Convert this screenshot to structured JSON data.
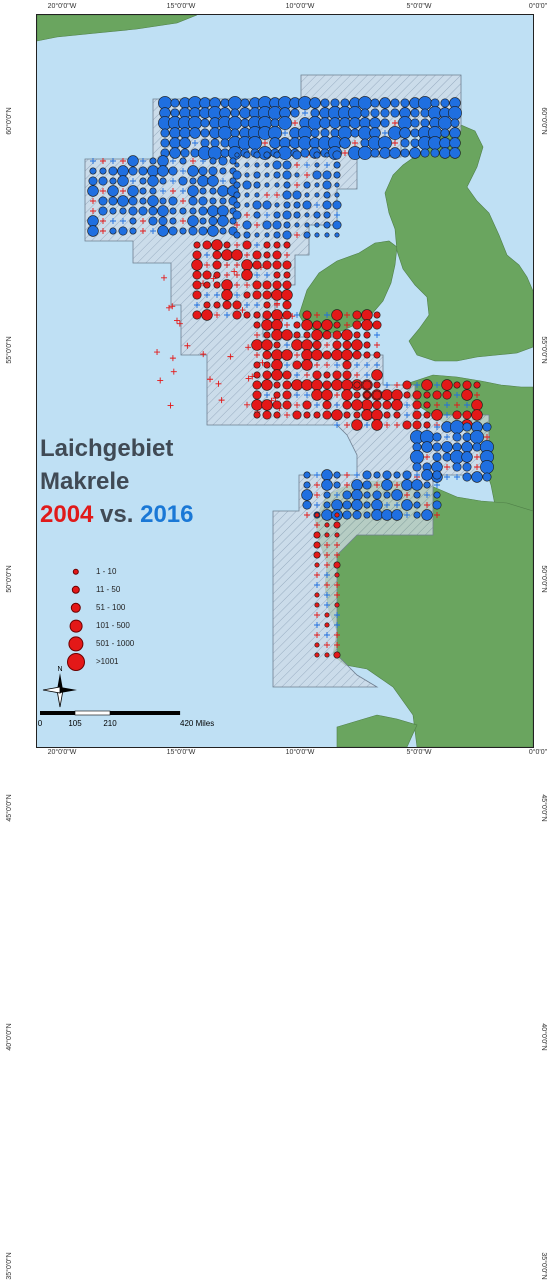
{
  "title": {
    "line1": "Laichgebiet",
    "line2": "Makrele",
    "year_a": "2004",
    "vs": " vs. ",
    "year_b": "2016"
  },
  "colors": {
    "sea": "#bfe0f4",
    "land": "#6aa55f",
    "survey_area": "#c9d6e3",
    "red": "#e31818",
    "blue": "#1f6fe0"
  },
  "legend": [
    {
      "label": "1 - 10",
      "size": 1
    },
    {
      "label": "11 - 50",
      "size": 2
    },
    {
      "label": "51 - 100",
      "size": 3
    },
    {
      "label": "101 - 500",
      "size": 4
    },
    {
      "label": "501 - 1000",
      "size": 5
    },
    {
      "label": ">1001",
      "size": 6
    }
  ],
  "north_label": "N",
  "scale": {
    "labels": [
      "0",
      "105",
      "210",
      "420 Miles"
    ]
  },
  "axes": {
    "lon_ticks": [
      "20°0'0\"W",
      "15°0'0\"W",
      "10°0'0\"W",
      "5°0'0\"W",
      "0°0'0\""
    ],
    "lat_ticks": [
      "60°0'0\"N",
      "55°0'0\"N",
      "50°0'0\"N",
      "45°0'0\"N",
      "40°0'0\"N",
      "35°0'0\"N"
    ],
    "lon_values": [
      -20,
      -15,
      -10,
      -5,
      0
    ],
    "lat_values": [
      60,
      55,
      50,
      45,
      40,
      35
    ]
  }
}
